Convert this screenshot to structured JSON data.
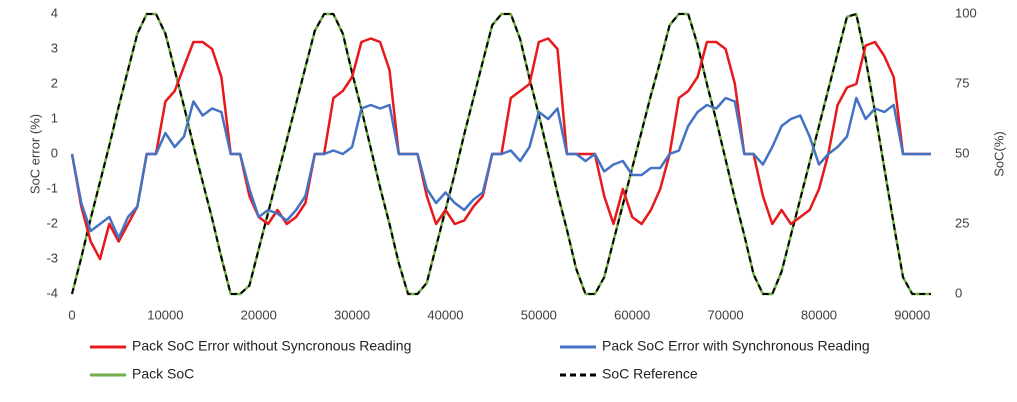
{
  "chart_data": {
    "type": "line",
    "x": [
      0,
      1000,
      2000,
      3000,
      4000,
      5000,
      6000,
      7000,
      8000,
      9000,
      10000,
      11000,
      12000,
      13000,
      14000,
      15000,
      16000,
      17000,
      18000,
      19000,
      20000,
      21000,
      22000,
      23000,
      24000,
      25000,
      26000,
      27000,
      28000,
      29000,
      30000,
      31000,
      32000,
      33000,
      34000,
      35000,
      36000,
      37000,
      38000,
      39000,
      40000,
      41000,
      42000,
      43000,
      44000,
      45000,
      46000,
      47000,
      48000,
      49000,
      50000,
      51000,
      52000,
      53000,
      54000,
      55000,
      56000,
      57000,
      58000,
      59000,
      60000,
      61000,
      62000,
      63000,
      64000,
      65000,
      66000,
      67000,
      68000,
      69000,
      70000,
      71000,
      72000,
      73000,
      74000,
      75000,
      76000,
      77000,
      78000,
      79000,
      80000,
      81000,
      82000,
      83000,
      84000,
      85000,
      86000,
      87000,
      88000,
      89000,
      90000,
      91000,
      92000
    ],
    "series": [
      {
        "name": "Pack SoC",
        "color": "#70ad47",
        "axis": "y2",
        "line_style": "solid",
        "values": [
          0,
          13,
          27,
          40,
          53,
          67,
          80,
          93,
          100,
          100,
          93,
          80,
          67,
          53,
          40,
          27,
          13,
          0,
          0,
          3,
          16,
          29,
          42,
          55,
          68,
          81,
          94,
          100,
          100,
          93,
          79,
          66,
          52,
          38,
          25,
          11,
          0,
          0,
          4,
          17,
          30,
          43,
          57,
          70,
          83,
          96,
          100,
          100,
          91,
          77,
          64,
          50,
          36,
          23,
          9,
          0,
          0,
          6,
          19,
          32,
          45,
          58,
          71,
          83,
          96,
          100,
          100,
          89,
          75,
          62,
          48,
          34,
          21,
          7,
          0,
          0,
          8,
          21,
          34,
          47,
          60,
          73,
          86,
          99,
          100,
          84,
          65,
          45,
          25,
          6,
          0,
          0,
          0
        ]
      },
      {
        "name": "SoC Reference",
        "color": "#000000",
        "axis": "y2",
        "line_style": "dashed",
        "values": [
          0,
          13,
          27,
          40,
          53,
          67,
          80,
          93,
          100,
          100,
          93,
          80,
          67,
          53,
          40,
          27,
          13,
          0,
          0,
          3,
          16,
          29,
          42,
          55,
          68,
          81,
          94,
          100,
          100,
          93,
          79,
          66,
          52,
          38,
          25,
          11,
          0,
          0,
          4,
          17,
          30,
          43,
          57,
          70,
          83,
          96,
          100,
          100,
          91,
          77,
          64,
          50,
          36,
          23,
          9,
          0,
          0,
          6,
          19,
          32,
          45,
          58,
          71,
          83,
          96,
          100,
          100,
          89,
          75,
          62,
          48,
          34,
          21,
          7,
          0,
          0,
          8,
          21,
          34,
          47,
          60,
          73,
          86,
          99,
          100,
          84,
          65,
          45,
          25,
          6,
          0,
          0,
          0
        ]
      },
      {
        "name": "Pack SoC Error without Syncronous Reading",
        "color": "#e8191c",
        "axis": "y",
        "line_style": "solid",
        "values": [
          0,
          -1.5,
          -2.5,
          -3.0,
          -2.0,
          -2.5,
          -2.0,
          -1.5,
          0,
          0,
          1.5,
          1.8,
          2.5,
          3.2,
          3.2,
          3.0,
          2.2,
          0,
          0,
          -1.2,
          -1.8,
          -2.0,
          -1.6,
          -2.0,
          -1.8,
          -1.4,
          0,
          0,
          1.6,
          1.8,
          2.2,
          3.2,
          3.3,
          3.2,
          2.4,
          0,
          0,
          0,
          -1.2,
          -2.0,
          -1.6,
          -2.0,
          -1.9,
          -1.5,
          -1.2,
          0,
          0,
          1.6,
          1.8,
          2.0,
          3.2,
          3.3,
          3.0,
          0,
          0,
          0,
          0,
          -1.2,
          -2.0,
          -1.0,
          -1.8,
          -2.0,
          -1.6,
          -1.0,
          0,
          1.6,
          1.8,
          2.2,
          3.2,
          3.2,
          3.0,
          2.0,
          0,
          0,
          -1.2,
          -2.0,
          -1.6,
          -2.0,
          -1.8,
          -1.6,
          -1.0,
          0,
          1.4,
          1.9,
          2.0,
          3.1,
          3.2,
          2.8,
          2.2,
          0,
          0,
          0,
          0
        ]
      },
      {
        "name": "Pack SoC Error with Synchronous Reading",
        "color": "#4472c4",
        "axis": "y",
        "line_style": "solid",
        "values": [
          0,
          -1.4,
          -2.2,
          -2.0,
          -1.8,
          -2.4,
          -1.8,
          -1.5,
          0,
          0,
          0.6,
          0.2,
          0.5,
          1.5,
          1.1,
          1.3,
          1.2,
          0,
          0,
          -1.0,
          -1.8,
          -1.6,
          -1.7,
          -1.9,
          -1.6,
          -1.2,
          0,
          0,
          0.1,
          0,
          0.2,
          1.3,
          1.4,
          1.3,
          1.4,
          0,
          0,
          0,
          -1.0,
          -1.4,
          -1.1,
          -1.4,
          -1.6,
          -1.3,
          -1.1,
          0,
          0,
          0.1,
          -0.2,
          0.2,
          1.2,
          1.0,
          1.3,
          0,
          0,
          -0.2,
          0,
          -0.5,
          -0.3,
          -0.2,
          -0.6,
          -0.6,
          -0.4,
          -0.4,
          0,
          0.1,
          0.8,
          1.2,
          1.4,
          1.3,
          1.6,
          1.5,
          0,
          0,
          -0.3,
          0.2,
          0.8,
          1.0,
          1.1,
          0.5,
          -0.3,
          0,
          0.2,
          0.5,
          1.6,
          1.0,
          1.3,
          1.2,
          1.4,
          0,
          0,
          0,
          0
        ]
      }
    ],
    "y_label": "SoC error (%)",
    "y2_label": "SoC(%)",
    "xlim": [
      0,
      92000
    ],
    "xticks": [
      0,
      10000,
      20000,
      30000,
      40000,
      50000,
      60000,
      70000,
      80000,
      90000
    ],
    "ylim": [
      -4,
      4
    ],
    "yticks": [
      -4,
      -3,
      -2,
      -1,
      0,
      1,
      2,
      3,
      4
    ],
    "y2lim": [
      0,
      100
    ],
    "y2ticks": [
      0,
      25,
      50,
      75,
      100
    ],
    "grid": false
  }
}
